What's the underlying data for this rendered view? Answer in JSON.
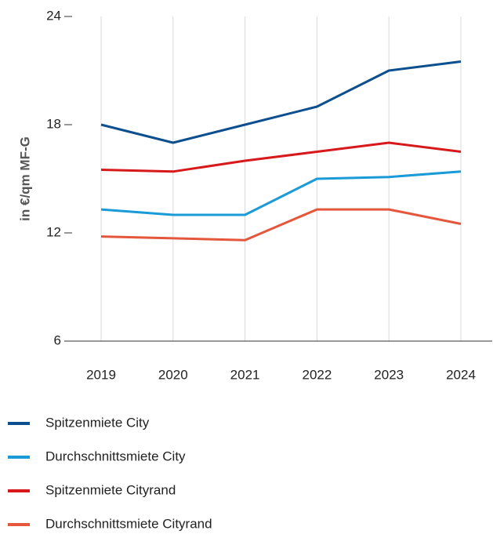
{
  "chart_data": {
    "type": "line",
    "ylabel": "in €/qm MF-G",
    "categories": [
      "2019",
      "2020",
      "2021",
      "2022",
      "2023",
      "2024"
    ],
    "series": [
      {
        "name": "Spitzenmiete City",
        "color": "#0b4f8f",
        "values": [
          18,
          17,
          18,
          19,
          21,
          21.5
        ]
      },
      {
        "name": "Durchschnittsmiete City",
        "color": "#1a9bd7",
        "values": [
          13.3,
          13,
          13,
          15,
          15.1,
          15.4
        ]
      },
      {
        "name": "Spitzenmiete Cityrand",
        "color": "#d7191c",
        "values": [
          15.5,
          15.4,
          16,
          16.5,
          17,
          16.5
        ]
      },
      {
        "name": "Durchschnittsmiete Cityrand",
        "color": "#e4573d",
        "values": [
          11.8,
          11.7,
          11.6,
          13.3,
          13.3,
          12.5
        ]
      }
    ],
    "ylim": [
      6,
      24
    ],
    "yticks": [
      6,
      12,
      18,
      24
    ],
    "grid": true
  }
}
